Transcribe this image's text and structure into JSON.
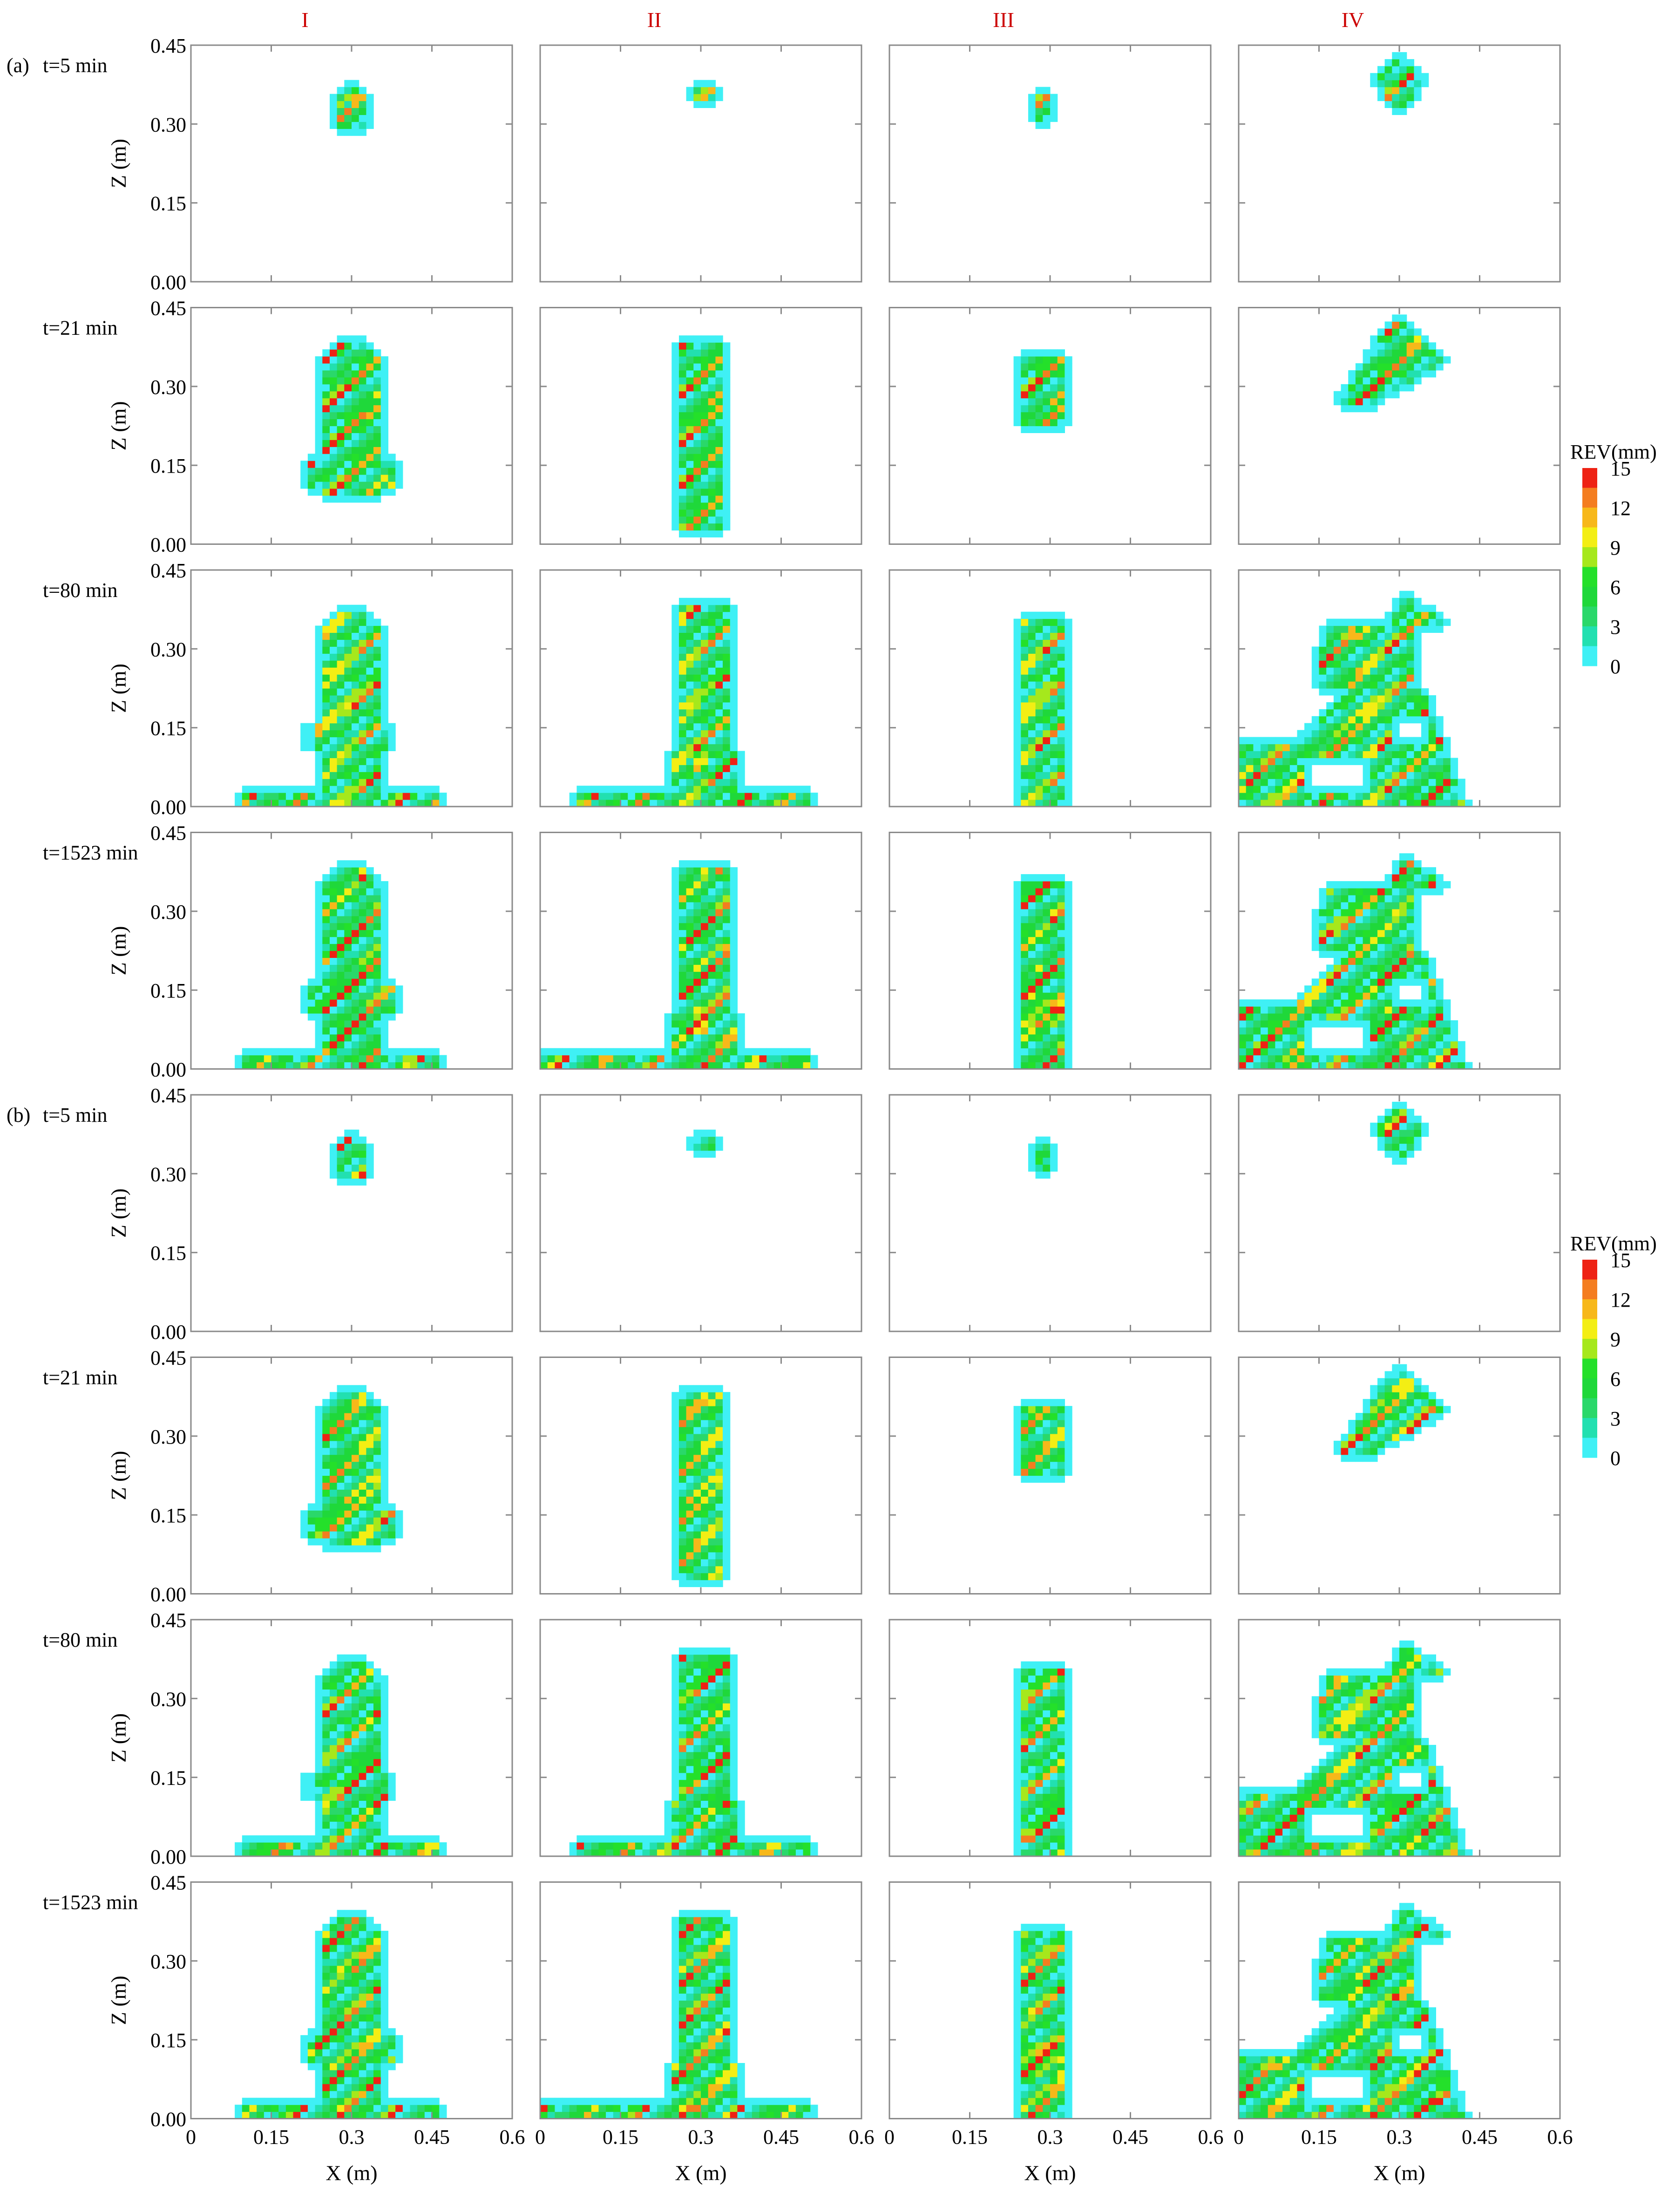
{
  "chart_data": {
    "type": "heatmap",
    "title": "",
    "xlabel": "X (m)",
    "ylabel": "Z (m)",
    "xlim": [
      0,
      0.6
    ],
    "ylim": [
      0,
      0.45
    ],
    "xticks": [
      "0",
      "0.15",
      "0.3",
      "0.45",
      "0.6"
    ],
    "yticks": [
      "0.00",
      "0.15",
      "0.30",
      "0.45"
    ],
    "columns": [
      "I",
      "II",
      "III",
      "IV"
    ],
    "times": [
      "t=5 min",
      "t=21 min",
      "t=80 min",
      "t=1523 min"
    ],
    "groups": [
      {
        "label": "(a)",
        "colorbar": {
          "title": "REV(mm)",
          "ticks": [
            "15",
            "12",
            "9",
            "6",
            "3",
            "0"
          ]
        }
      },
      {
        "label": "(b)",
        "colorbar": {
          "title": "REV(mm)",
          "ticks": [
            "15",
            "12",
            "9",
            "6",
            "3",
            "0"
          ]
        }
      }
    ],
    "colorscale": {
      "levels": [
        0,
        1.5,
        3,
        4.5,
        6,
        7.5,
        9,
        10.5,
        12,
        13.5,
        15
      ],
      "colors": [
        "#ffffff",
        "#3ff0f5",
        "#22e0b0",
        "#2ad86a",
        "#1fd83a",
        "#24e02a",
        "#a6e81c",
        "#f3ee14",
        "#f7b81a",
        "#f47d20",
        "#ee2214"
      ]
    },
    "colors": {
      "column_label": "#cc0000",
      "axis": "#000000",
      "frame": "#8a8a8a"
    },
    "notes": "Each panel is a spatial map of REV (mm) over X 0-0.6 m and Z 0-0.45 m; blobs grow downward from the injection point near X=0.3 m over time."
  }
}
